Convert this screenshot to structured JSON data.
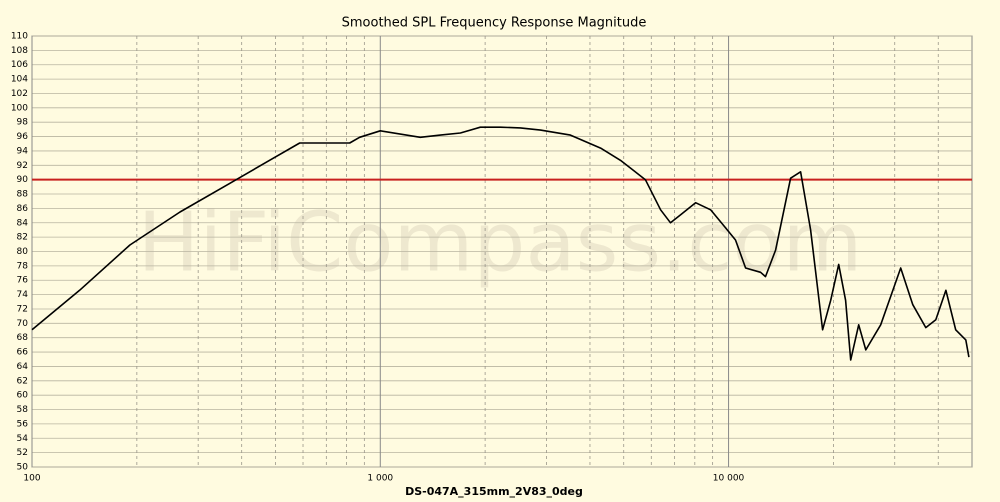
{
  "chart_data": {
    "type": "line",
    "title": "Smoothed SPL Frequency Response Magnitude",
    "x_label": "DS-047A_315mm_2V83_0deg",
    "watermark": "HiFiCompass.com",
    "x_scale": "log",
    "grid": true,
    "xlim": [
      100,
      50000
    ],
    "ylim": [
      50,
      110
    ],
    "xticks": [
      100,
      {
        "value": 1000,
        "label": "1 000"
      },
      {
        "value": 10000,
        "label": "10 000"
      }
    ],
    "xminorticks": [
      200,
      300,
      400,
      500,
      600,
      700,
      800,
      900,
      2000,
      3000,
      4000,
      5000,
      6000,
      7000,
      8000,
      9000,
      20000,
      30000,
      40000
    ],
    "yticks": [
      50,
      52,
      54,
      56,
      58,
      60,
      62,
      64,
      66,
      68,
      70,
      72,
      74,
      76,
      78,
      80,
      82,
      84,
      86,
      88,
      90,
      92,
      94,
      96,
      98,
      100,
      102,
      104,
      106,
      108,
      110
    ],
    "reference_line": {
      "value": 90,
      "color": "#c8201e"
    },
    "series": [
      {
        "color": "#000000",
        "x": [
          100,
          137,
          191,
          266,
          370,
          422,
          481,
          587,
          715,
          817,
          872,
          1000,
          1303,
          1487,
          1698,
          1937,
          2213,
          2525,
          2884,
          3515,
          4290,
          4890,
          5770,
          6380,
          6810,
          7280,
          8040,
          8880,
          9800,
          10470,
          11190,
          12360,
          12770,
          13650,
          15070,
          16100,
          17200,
          18620,
          19640,
          20710,
          21680,
          22420,
          23640,
          24780,
          27350,
          31200,
          33800,
          36840,
          39350,
          42070,
          44900,
          48000,
          49000
        ],
        "values": [
          69.1,
          74.6,
          80.9,
          85.5,
          89.5,
          91.1,
          92.7,
          95.1,
          95.1,
          95.1,
          95.9,
          96.8,
          95.9,
          96.2,
          96.5,
          97.3,
          97.3,
          97.2,
          96.9,
          96.2,
          94.4,
          92.7,
          90.0,
          85.8,
          84.0,
          85.1,
          86.8,
          85.8,
          83.3,
          81.6,
          77.7,
          77.1,
          76.5,
          80.2,
          90.2,
          91.1,
          83.0,
          69.1,
          73.2,
          78.2,
          73.2,
          64.9,
          69.8,
          66.3,
          69.8,
          77.7,
          72.6,
          69.4,
          70.5,
          74.6,
          69.1,
          67.7,
          65.3
        ]
      }
    ]
  }
}
